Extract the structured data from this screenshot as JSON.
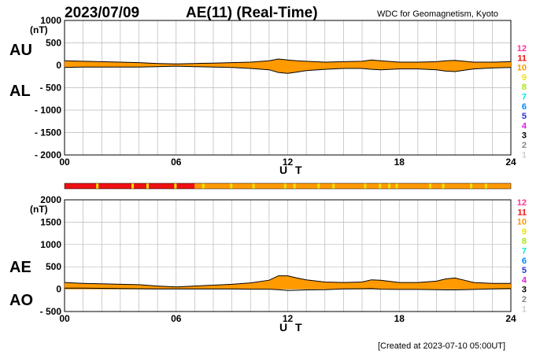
{
  "header": {
    "date": "2023/07/09",
    "title": "AE(11) (Real-Time)",
    "source": "WDC for Geomagnetism, Kyoto"
  },
  "footer": {
    "created": "[Created at 2023-07-10 05:00UT]"
  },
  "colors": {
    "upper_band": "#ff9a00",
    "lower_band": "#ff9a00",
    "outline": "#000000",
    "grid": "#b8b8b8"
  },
  "activity_scale": {
    "levels": [
      {
        "label": "12",
        "color": "#ff3399"
      },
      {
        "label": "11",
        "color": "#ee1111"
      },
      {
        "label": "10",
        "color": "#ff9900"
      },
      {
        "label": "9",
        "color": "#f2e200"
      },
      {
        "label": "8",
        "color": "#a8e800"
      },
      {
        "label": "7",
        "color": "#00e8e0"
      },
      {
        "label": "6",
        "color": "#0088ff"
      },
      {
        "label": "5",
        "color": "#2233dd"
      },
      {
        "label": "4",
        "color": "#dd22dd"
      },
      {
        "label": "3",
        "color": "#000000"
      },
      {
        "label": "2",
        "color": "#888888"
      },
      {
        "label": "1",
        "color": "#cfcfcf"
      }
    ]
  },
  "chart_data": [
    {
      "type": "area",
      "name": "AU/AL",
      "ylabel_top": "AU",
      "ylabel_bottom": "AL",
      "unit": "(nT)",
      "ylim": [
        -2000,
        1000
      ],
      "yticks": [
        "1000",
        "500",
        "0",
        "- 500",
        "- 1000",
        "- 1500",
        "- 2000"
      ],
      "ytick_values": [
        1000,
        500,
        0,
        -500,
        -1000,
        -1500,
        -2000
      ],
      "xlim": [
        0,
        24
      ],
      "xticks": [
        "00",
        "06",
        "12",
        "18",
        "24"
      ],
      "xlabel": "U T",
      "grid": true,
      "x": [
        0,
        1,
        2,
        3,
        4,
        5,
        6,
        7,
        8,
        9,
        10,
        11,
        11.5,
        12,
        12.5,
        13,
        14,
        15,
        16,
        16.5,
        17,
        18,
        19,
        20,
        20.5,
        21,
        21.5,
        22,
        23,
        24
      ],
      "AU": [
        100,
        90,
        80,
        70,
        60,
        40,
        30,
        40,
        50,
        60,
        70,
        100,
        140,
        120,
        100,
        90,
        70,
        80,
        90,
        120,
        100,
        70,
        70,
        80,
        100,
        110,
        90,
        70,
        70,
        80
      ],
      "AL": [
        -50,
        -40,
        -40,
        -40,
        -40,
        -30,
        -20,
        -30,
        -40,
        -50,
        -70,
        -100,
        -160,
        -180,
        -150,
        -120,
        -90,
        -70,
        -70,
        -90,
        -100,
        -80,
        -80,
        -100,
        -130,
        -140,
        -110,
        -80,
        -60,
        -50
      ]
    },
    {
      "type": "area",
      "name": "AE/AO",
      "ylabel_top": "AE",
      "ylabel_bottom": "AO",
      "unit": "(nT)",
      "ylim": [
        -500,
        2000
      ],
      "yticks": [
        "2000",
        "1500",
        "1000",
        "500",
        "0",
        "- 500"
      ],
      "ytick_values": [
        2000,
        1500,
        1000,
        500,
        0,
        -500
      ],
      "xlim": [
        0,
        24
      ],
      "xticks": [
        "00",
        "06",
        "12",
        "18",
        "24"
      ],
      "xlabel": "U T",
      "grid": true,
      "x": [
        0,
        1,
        2,
        3,
        4,
        5,
        6,
        7,
        8,
        9,
        10,
        11,
        11.5,
        12,
        12.5,
        13,
        14,
        15,
        16,
        16.5,
        17,
        18,
        19,
        20,
        20.5,
        21,
        21.5,
        22,
        23,
        24
      ],
      "AE": [
        150,
        130,
        120,
        110,
        100,
        70,
        50,
        70,
        90,
        110,
        140,
        200,
        300,
        300,
        250,
        210,
        160,
        150,
        160,
        210,
        200,
        150,
        150,
        180,
        230,
        250,
        200,
        150,
        130,
        130
      ],
      "AO": [
        25,
        25,
        20,
        15,
        10,
        5,
        5,
        5,
        5,
        5,
        0,
        0,
        -10,
        -30,
        -25,
        -15,
        -10,
        5,
        10,
        15,
        0,
        -5,
        -5,
        -10,
        -15,
        -15,
        -10,
        -5,
        5,
        15
      ]
    }
  ]
}
